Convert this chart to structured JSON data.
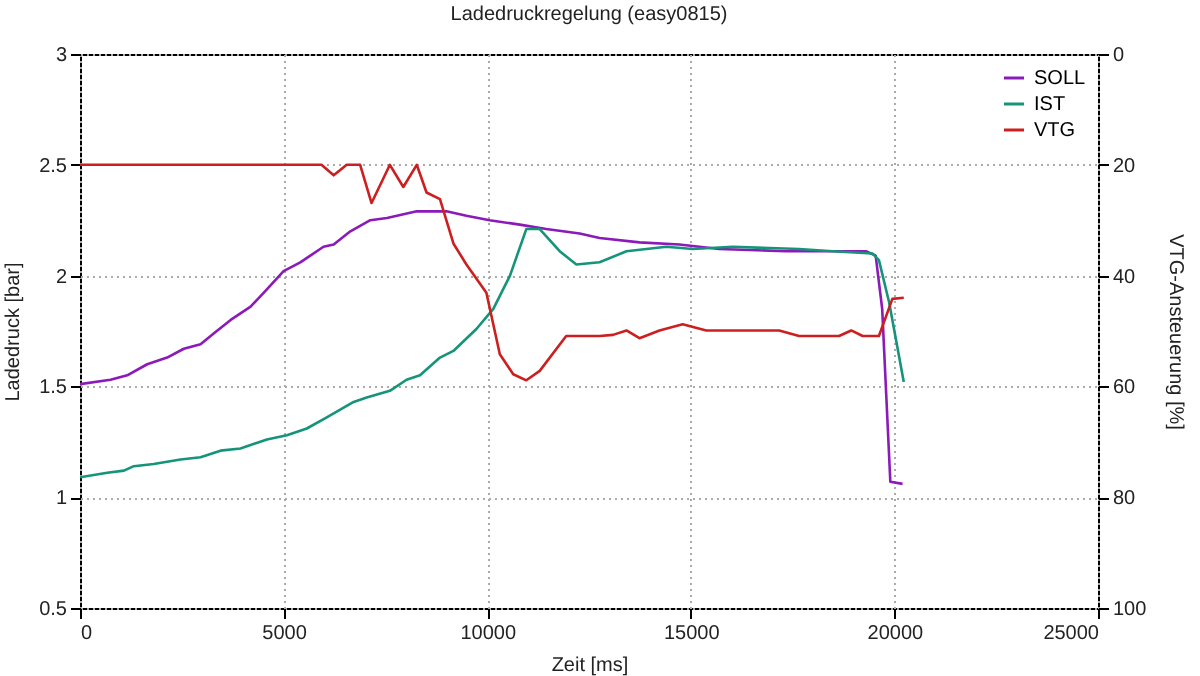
{
  "chart_data": {
    "type": "line",
    "title": "Ladedruckregelung (easy0815)",
    "xlabel": "Zeit [ms]",
    "ylabel": "Ladedruck [bar]",
    "y2label": "VTG-Ansteuerung [%]",
    "xlim": [
      0,
      25000
    ],
    "xticks": [
      0,
      5000,
      10000,
      15000,
      20000,
      25000
    ],
    "ylim": [
      0.5,
      3
    ],
    "yticks": [
      0.5,
      1,
      1.5,
      2,
      2.5,
      3
    ],
    "y2lim": [
      100,
      0
    ],
    "y2ticks": [
      0,
      20,
      40,
      60,
      80,
      100
    ],
    "grid": true,
    "legend": "top right",
    "series": [
      {
        "name": "SOLL",
        "color": "#8b1ab8",
        "x": [
          0,
          750,
          1160,
          1650,
          2140,
          2550,
          2960,
          3290,
          3700,
          4190,
          4600,
          5000,
          5410,
          5980,
          6230,
          6640,
          7130,
          7540,
          8270,
          9000,
          9490,
          10060,
          10800,
          11450,
          12270,
          12760,
          13740,
          14720,
          15700,
          17340,
          19300,
          19540,
          19700,
          19900,
          20200
        ],
        "values": [
          1.51,
          1.53,
          1.55,
          1.6,
          1.63,
          1.67,
          1.69,
          1.74,
          1.8,
          1.86,
          1.94,
          2.02,
          2.06,
          2.13,
          2.14,
          2.2,
          2.25,
          2.26,
          2.29,
          2.29,
          2.27,
          2.25,
          2.23,
          2.21,
          2.19,
          2.17,
          2.15,
          2.14,
          2.12,
          2.11,
          2.11,
          2.09,
          1.85,
          1.07,
          1.06
        ]
      },
      {
        "name": "IST",
        "color": "#15947a",
        "x": [
          0,
          670,
          1080,
          1320,
          1810,
          2470,
          2960,
          3450,
          3940,
          4590,
          5080,
          5570,
          6060,
          6720,
          7040,
          7610,
          8020,
          8350,
          8840,
          9170,
          9740,
          10150,
          10560,
          10960,
          11290,
          11780,
          12190,
          12760,
          13420,
          14400,
          15050,
          16030,
          17660,
          18480,
          19460,
          19620,
          19870,
          20230
        ],
        "values": [
          1.09,
          1.11,
          1.12,
          1.14,
          1.15,
          1.17,
          1.18,
          1.21,
          1.22,
          1.26,
          1.28,
          1.31,
          1.36,
          1.43,
          1.45,
          1.48,
          1.53,
          1.55,
          1.63,
          1.66,
          1.76,
          1.85,
          2.0,
          2.21,
          2.21,
          2.11,
          2.05,
          2.06,
          2.11,
          2.13,
          2.12,
          2.13,
          2.12,
          2.11,
          2.1,
          2.07,
          1.88,
          1.52
        ]
      },
      {
        "name": "VTG",
        "color": "#cc1f1f",
        "axis": "y2",
        "x": [
          0,
          5930,
          6230,
          6550,
          6880,
          7160,
          7610,
          7940,
          8270,
          8510,
          8840,
          9170,
          9490,
          9980,
          10310,
          10640,
          10960,
          11290,
          11940,
          12760,
          13090,
          13420,
          13740,
          14230,
          14800,
          15380,
          17170,
          17660,
          18640,
          18940,
          19220,
          19620,
          19950,
          20230
        ],
        "values": [
          20,
          20,
          21.9,
          20,
          20,
          26.9,
          20,
          24,
          20,
          25,
          26.2,
          34.2,
          38,
          43.1,
          54.2,
          57.8,
          58.9,
          57.2,
          50.9,
          50.9,
          50.7,
          49.9,
          51.3,
          49.9,
          48.8,
          49.9,
          49.9,
          50.9,
          50.9,
          49.9,
          50.9,
          50.9,
          44.2,
          44
        ]
      }
    ]
  }
}
